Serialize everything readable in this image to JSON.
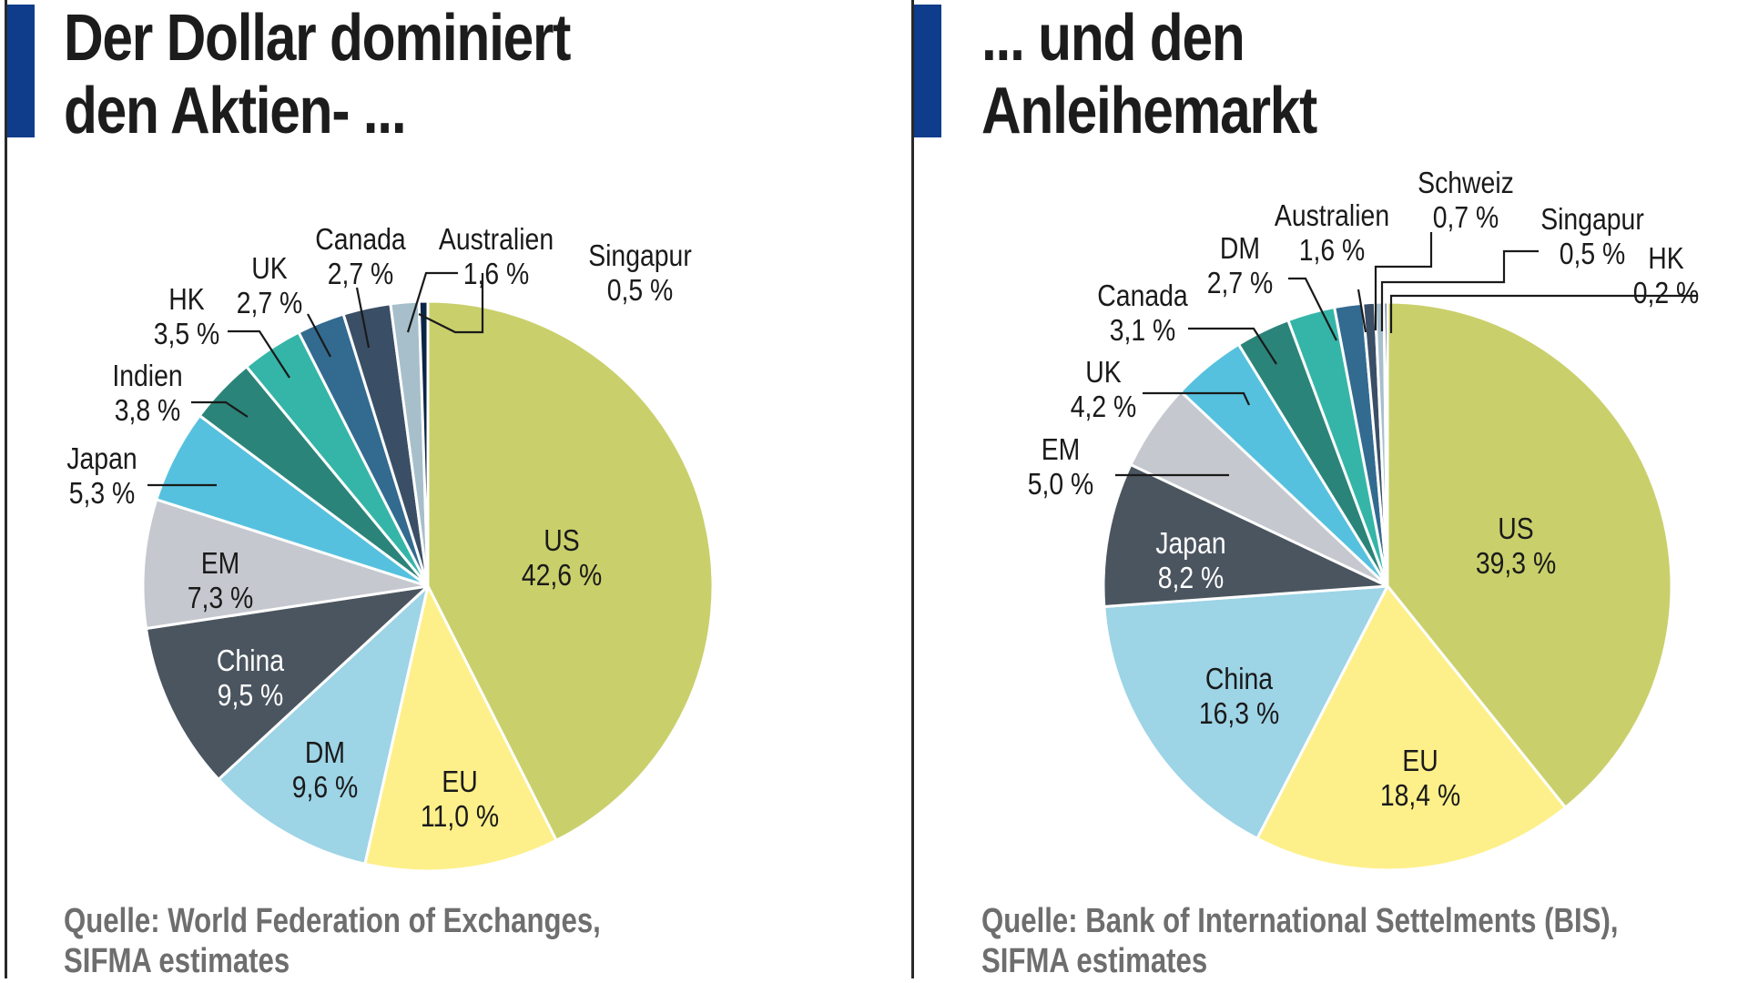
{
  "left_panel": {
    "title_line1": "Der Dollar dominiert",
    "title_line2": "den Aktien- ...",
    "source_line1": "Quelle: World Federation of Exchanges,",
    "source_line2": "SIFMA estimates"
  },
  "right_panel": {
    "title_line1": "... und den",
    "title_line2": "Anleihemarkt",
    "source_line1": "Quelle: Bank of International Settelments (BIS),",
    "source_line2": "SIFMA estimates"
  },
  "colors": {
    "accent_bar": "#0f3d8c",
    "US": "#c9d06b",
    "EU": "#fdf08a",
    "DM_left": "#9dd4e6",
    "China_left": "#4b5560",
    "EM": "#c5c8cf",
    "Japan_left": "#56c1de",
    "Indien": "#2b8479",
    "HK_left": "#35b5a8",
    "UK_left": "#336a90",
    "Canada_left": "#3a4f66",
    "Australien_left": "#a6bfcb",
    "Singapur_left": "#0b2547",
    "source_text": "#6e6e6e"
  },
  "chart_data": [
    {
      "type": "pie",
      "title": "Der Dollar dominiert den Aktien- ...",
      "source": "Quelle: World Federation of Exchanges, SIFMA estimates",
      "start_angle": "12 o'clock, clockwise",
      "categories": [
        "US",
        "EU",
        "DM",
        "China",
        "EM",
        "Japan",
        "Indien",
        "HK",
        "UK",
        "Canada",
        "Australien",
        "Singapur"
      ],
      "values": [
        42.6,
        11.0,
        9.6,
        9.5,
        7.3,
        5.3,
        3.8,
        3.5,
        2.7,
        2.7,
        1.6,
        0.5
      ],
      "labels": [
        "42,6 %",
        "11,0 %",
        "9,6 %",
        "9,5 %",
        "7,3 %",
        "5,3 %",
        "3,8 %",
        "3,5 %",
        "2,7 %",
        "2,7 %",
        "1,6 %",
        "0,5 %"
      ],
      "colors": [
        "#c9d06b",
        "#fdf08a",
        "#9dd4e6",
        "#4b5560",
        "#c5c8cf",
        "#56c1de",
        "#2b8479",
        "#35b5a8",
        "#336a90",
        "#3a4f66",
        "#a6bfcb",
        "#0b2547"
      ],
      "unit": "%"
    },
    {
      "type": "pie",
      "title": "... und den Anleihemarkt",
      "source": "Quelle: Bank of International Settelments (BIS), SIFMA estimates",
      "start_angle": "12 o'clock, clockwise",
      "categories": [
        "US",
        "EU",
        "China",
        "Japan",
        "EM",
        "UK",
        "Canada",
        "DM",
        "Australien",
        "Schweiz",
        "Singapur",
        "HK"
      ],
      "values": [
        39.3,
        18.4,
        16.3,
        8.2,
        5.0,
        4.2,
        3.1,
        2.7,
        1.6,
        0.7,
        0.5,
        0.2
      ],
      "labels": [
        "39,3 %",
        "18,4 %",
        "16,3 %",
        "8,2 %",
        "5,0 %",
        "4,2 %",
        "3,1 %",
        "2,7 %",
        "1,6 %",
        "0,7 %",
        "0,5 %",
        "0,2 %"
      ],
      "colors": [
        "#c9d06b",
        "#fdf08a",
        "#9dd4e6",
        "#4b5560",
        "#c5c8cf",
        "#56c1de",
        "#2b8479",
        "#35b5a8",
        "#336a90",
        "#3a4f66",
        "#a6bfcb",
        "#0b2547"
      ],
      "unit": "%"
    }
  ]
}
